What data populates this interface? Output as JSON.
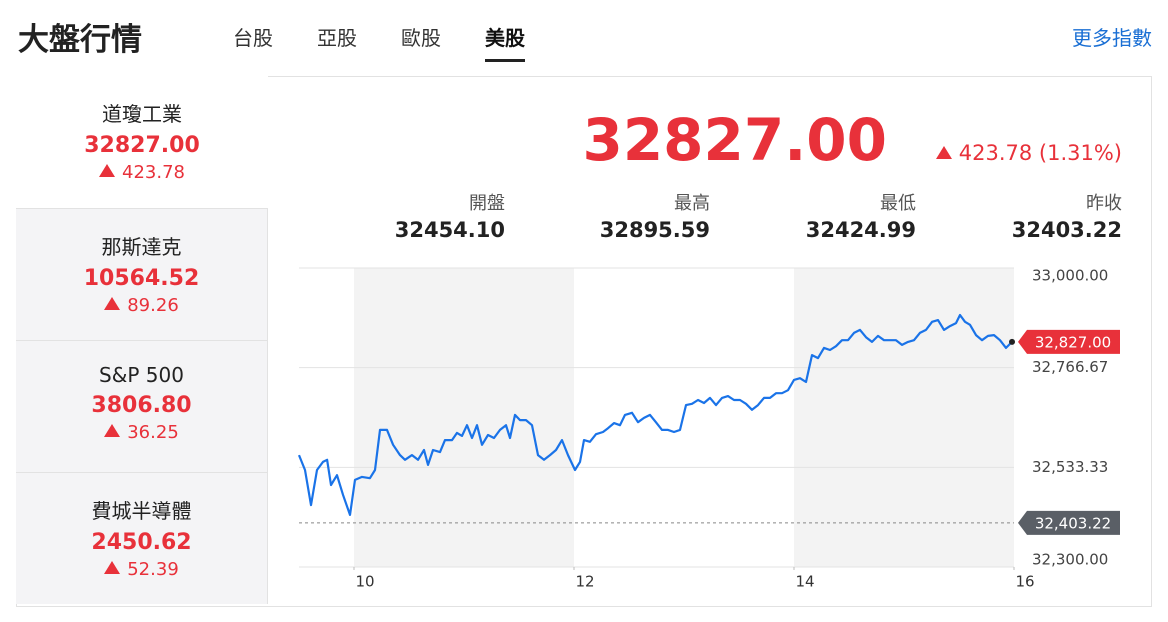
{
  "header": {
    "title": "大盤行情",
    "tabs": [
      "台股",
      "亞股",
      "歐股",
      "美股"
    ],
    "active_tab": 3,
    "more_link": "更多指數"
  },
  "indices": [
    {
      "name": "道瓊工業",
      "value": "32827.00",
      "change": "423.78"
    },
    {
      "name": "那斯達克",
      "value": "10564.52",
      "change": "89.26"
    },
    {
      "name": "S&P 500",
      "value": "3806.80",
      "change": "36.25"
    },
    {
      "name": "費城半導體",
      "value": "2450.62",
      "change": "52.39"
    }
  ],
  "active_index": 0,
  "quote": {
    "value": "32827.00",
    "change": "423.78 (1.31%)"
  },
  "stats": [
    {
      "label": "開盤",
      "value": "32454.10"
    },
    {
      "label": "最高",
      "value": "32895.59"
    },
    {
      "label": "最低",
      "value": "32424.99"
    },
    {
      "label": "昨收",
      "value": "32403.22"
    }
  ],
  "chart_data": {
    "type": "line",
    "color": "#1a73e8",
    "x": [
      9.5,
      9.555,
      9.609,
      9.664,
      9.718,
      9.755,
      9.791,
      9.845,
      9.9,
      9.964,
      10.009,
      10.073,
      10.145,
      10.191,
      10.236,
      10.3,
      10.355,
      10.418,
      10.464,
      10.527,
      10.582,
      10.636,
      10.673,
      10.718,
      10.782,
      10.827,
      10.891,
      10.936,
      10.982,
      11.027,
      11.073,
      11.118,
      11.164,
      11.218,
      11.273,
      11.327,
      11.382,
      11.418,
      11.464,
      11.509,
      11.564,
      11.618,
      11.673,
      11.727,
      11.782,
      11.836,
      11.891,
      11.945,
      12.009,
      12.055,
      12.091,
      12.145,
      12.2,
      12.264,
      12.309,
      12.364,
      12.418,
      12.464,
      12.527,
      12.582,
      12.636,
      12.691,
      12.745,
      12.8,
      12.855,
      12.909,
      12.964,
      13.018,
      13.073,
      13.127,
      13.182,
      13.236,
      13.291,
      13.345,
      13.4,
      13.455,
      13.509,
      13.564,
      13.618,
      13.673,
      13.727,
      13.782,
      13.836,
      13.891,
      13.945,
      14,
      14.055,
      14.109,
      14.164,
      14.218,
      14.273,
      14.327,
      14.382,
      14.436,
      14.491,
      14.545,
      14.6,
      14.655,
      14.709,
      14.764,
      14.818,
      14.873,
      14.927,
      14.982,
      15.036,
      15.091,
      15.145,
      15.2,
      15.255,
      15.309,
      15.364,
      15.418,
      15.473,
      15.509,
      15.555,
      15.6,
      15.655,
      15.709,
      15.764,
      15.818,
      15.873,
      15.927,
      15.982
    ],
    "values": [
      32562,
      32527,
      32445,
      32527,
      32546,
      32551,
      32492,
      32515,
      32469,
      32422,
      32504,
      32511,
      32508,
      32527,
      32621,
      32621,
      32586,
      32562,
      32551,
      32562,
      32551,
      32574,
      32539,
      32574,
      32569,
      32597,
      32597,
      32614,
      32607,
      32632,
      32602,
      32632,
      32586,
      32609,
      32602,
      32621,
      32632,
      32602,
      32656,
      32644,
      32644,
      32632,
      32562,
      32551,
      32562,
      32574,
      32597,
      32562,
      32527,
      32546,
      32597,
      32593,
      32611,
      32616,
      32625,
      32637,
      32632,
      32656,
      32661,
      32639,
      32649,
      32656,
      32639,
      32621,
      32621,
      32616,
      32621,
      32679,
      32682,
      32691,
      32684,
      32696,
      32679,
      32696,
      32700,
      32691,
      32691,
      32682,
      32668,
      32679,
      32696,
      32696,
      32707,
      32707,
      32714,
      32738,
      32742,
      32733,
      32796,
      32789,
      32813,
      32808,
      32817,
      32831,
      32831,
      32848,
      32855,
      32838,
      32827,
      32841,
      32831,
      32831,
      32831,
      32820,
      32827,
      32831,
      32848,
      32855,
      32874,
      32878,
      32855,
      32864,
      32871,
      32890,
      32874,
      32867,
      32843,
      32831,
      32841,
      32843,
      32831,
      32813,
      32827
    ],
    "xlim": [
      9.5,
      16
    ],
    "xticks": [
      10,
      12,
      14,
      16
    ],
    "ylim": [
      32300,
      33000
    ],
    "yticks": [
      {
        "value": 32300,
        "label": "32,300.00"
      },
      {
        "value": 32533.33,
        "label": "32,533.33"
      },
      {
        "value": 32766.67,
        "label": "32,766.67"
      },
      {
        "value": 33000,
        "label": "33,000.00"
      }
    ],
    "grid": true,
    "last_price": {
      "value": 32827,
      "label": "32,827.00",
      "color": "#e8313a"
    },
    "reference_line": {
      "value": 32403.22,
      "label": "32,403.22",
      "color": "#5a5f66"
    }
  }
}
